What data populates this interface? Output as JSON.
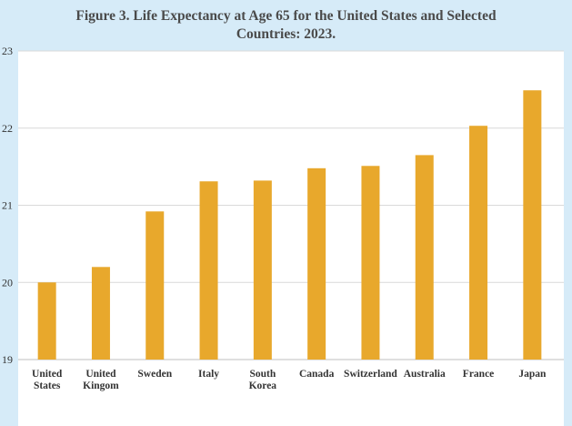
{
  "title_lines": [
    "Figure 3. Life Expectancy at Age 65 for the United States and Selected",
    "Countries: 2023."
  ],
  "colors": {
    "bar": "#E8A82C",
    "background": "#d6ebf8",
    "gridline": "#d9d9d9"
  },
  "chart_data": {
    "type": "bar",
    "title": "Figure 3. Life Expectancy at Age 65 for the United States and Selected Countries: 2023.",
    "categories": [
      [
        "United",
        "States"
      ],
      [
        "United",
        "Kingom"
      ],
      [
        "Sweden"
      ],
      [
        "Italy"
      ],
      [
        "South",
        "Korea"
      ],
      [
        "Canada"
      ],
      [
        "Switzerland"
      ],
      [
        "Australia"
      ],
      [
        "France"
      ],
      [
        "Japan"
      ]
    ],
    "values": [
      20.0,
      20.2,
      20.92,
      21.31,
      21.32,
      21.48,
      21.51,
      21.65,
      22.03,
      22.49
    ],
    "ylim": [
      19,
      23
    ],
    "yticks": [
      19,
      20,
      21,
      22,
      23
    ],
    "grid": true,
    "xlabel": "",
    "ylabel": ""
  }
}
